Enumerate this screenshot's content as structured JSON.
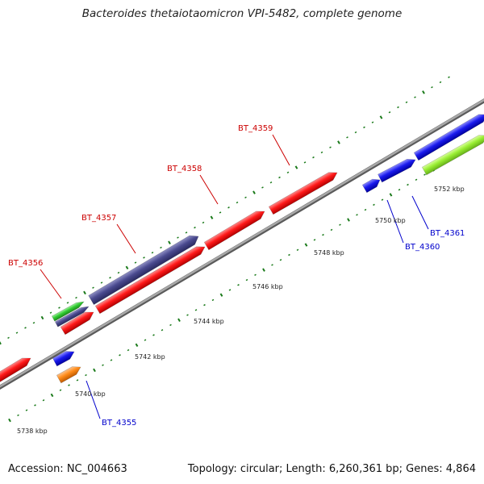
{
  "title": "Bacteroides thetaiotaomicron VPI-5482, complete genome",
  "footer": {
    "accession": "Accession: NC_004663",
    "summary": "Topology: circular; Length: 6,260,361 bp; Genes: 4,864"
  },
  "colors": {
    "label_top": "#cc0000",
    "label_bottom": "#0000cc",
    "ruler_ticks": "#1a7a1a",
    "backbone": "#8c8c8c",
    "red": "#ff1a1a",
    "blue": "#1a1aee",
    "purple": "#4a4a8f",
    "green": "#33cc33",
    "lime": "#99ee33",
    "orange": "#ff8c1a"
  },
  "ruler_labels": [
    "5738 kbp",
    "5740 kbp",
    "5742 kbp",
    "5744 kbp",
    "5746 kbp",
    "5748 kbp",
    "5750 kbp",
    "5752 kbp"
  ],
  "gene_labels_top": [
    "BT_4356",
    "BT_4357",
    "BT_4358",
    "BT_4359"
  ],
  "gene_labels_bottom": [
    "BT_4355",
    "BT_4360",
    "BT_4361"
  ]
}
